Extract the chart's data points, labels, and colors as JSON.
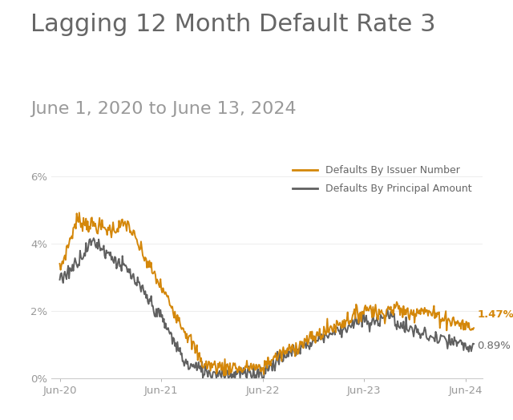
{
  "title": "Lagging 12 Month Default Rate 3",
  "subtitle": "June 1, 2020 to June 13, 2024",
  "title_color": "#666666",
  "subtitle_color": "#999999",
  "background_color": "#ffffff",
  "orange_color": "#D4870A",
  "gray_color": "#606060",
  "legend_label_issuer": "Defaults By Issuer Number",
  "legend_label_principal": "Defaults By Principal Amount",
  "end_label_issuer": "1.47%",
  "end_label_principal": "0.89%",
  "ylim": [
    0,
    0.065
  ],
  "yticks": [
    0,
    0.02,
    0.04,
    0.06
  ],
  "ytick_labels": [
    "0%",
    "2%",
    "4%",
    "6%"
  ],
  "xtick_labels": [
    "Jun-20",
    "Jun-21",
    "Jun-22",
    "Jun-23",
    "Jun-24"
  ],
  "title_fontsize": 22,
  "subtitle_fontsize": 16
}
